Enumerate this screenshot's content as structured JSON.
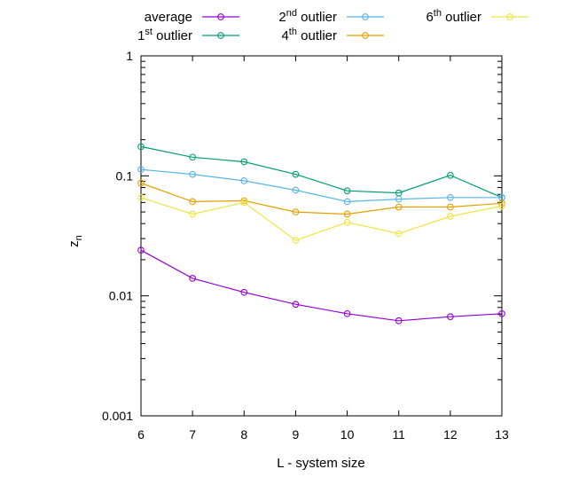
{
  "chart_data": {
    "type": "line",
    "xlabel": "L - system size",
    "ylabel": "z_n",
    "ylabel_main": "z",
    "ylabel_sub": "n",
    "yscale": "log",
    "xlim": [
      6,
      13
    ],
    "ylim": [
      0.001,
      1
    ],
    "xticks": [
      "6",
      "7",
      "8",
      "9",
      "10",
      "11",
      "12",
      "13"
    ],
    "yticks": [
      "0.001",
      "0.01",
      "0.1",
      "1"
    ],
    "x": [
      6,
      7,
      8,
      9,
      10,
      11,
      12,
      13
    ],
    "grid": false,
    "legend_position": "top",
    "series": [
      {
        "name": "average",
        "legend_main": "average",
        "legend_sup": "",
        "legend_rest": "",
        "color": "#9400d3",
        "values": [
          0.024,
          0.014,
          0.0107,
          0.0085,
          0.0071,
          0.0062,
          0.0067,
          0.0071
        ]
      },
      {
        "name": "1st outlier",
        "legend_main": "1",
        "legend_sup": "st",
        "legend_rest": " outlier",
        "color": "#009e73",
        "values": [
          0.175,
          0.143,
          0.131,
          0.103,
          0.075,
          0.072,
          0.101,
          0.066
        ]
      },
      {
        "name": "2nd outlier",
        "legend_main": "2",
        "legend_sup": "nd",
        "legend_rest": " outlier",
        "color": "#56b4e9",
        "values": [
          0.113,
          0.103,
          0.091,
          0.076,
          0.061,
          0.064,
          0.066,
          0.066
        ]
      },
      {
        "name": "4th outlier",
        "legend_main": "4",
        "legend_sup": "th",
        "legend_rest": " outlier",
        "color": "#e69f00",
        "values": [
          0.087,
          0.061,
          0.062,
          0.05,
          0.048,
          0.055,
          0.055,
          0.059
        ]
      },
      {
        "name": "6th outlier",
        "legend_main": "6",
        "legend_sup": "th",
        "legend_rest": " outlier",
        "color": "#f0e442",
        "values": [
          0.066,
          0.048,
          0.06,
          0.029,
          0.041,
          0.033,
          0.046,
          0.056
        ]
      }
    ]
  }
}
